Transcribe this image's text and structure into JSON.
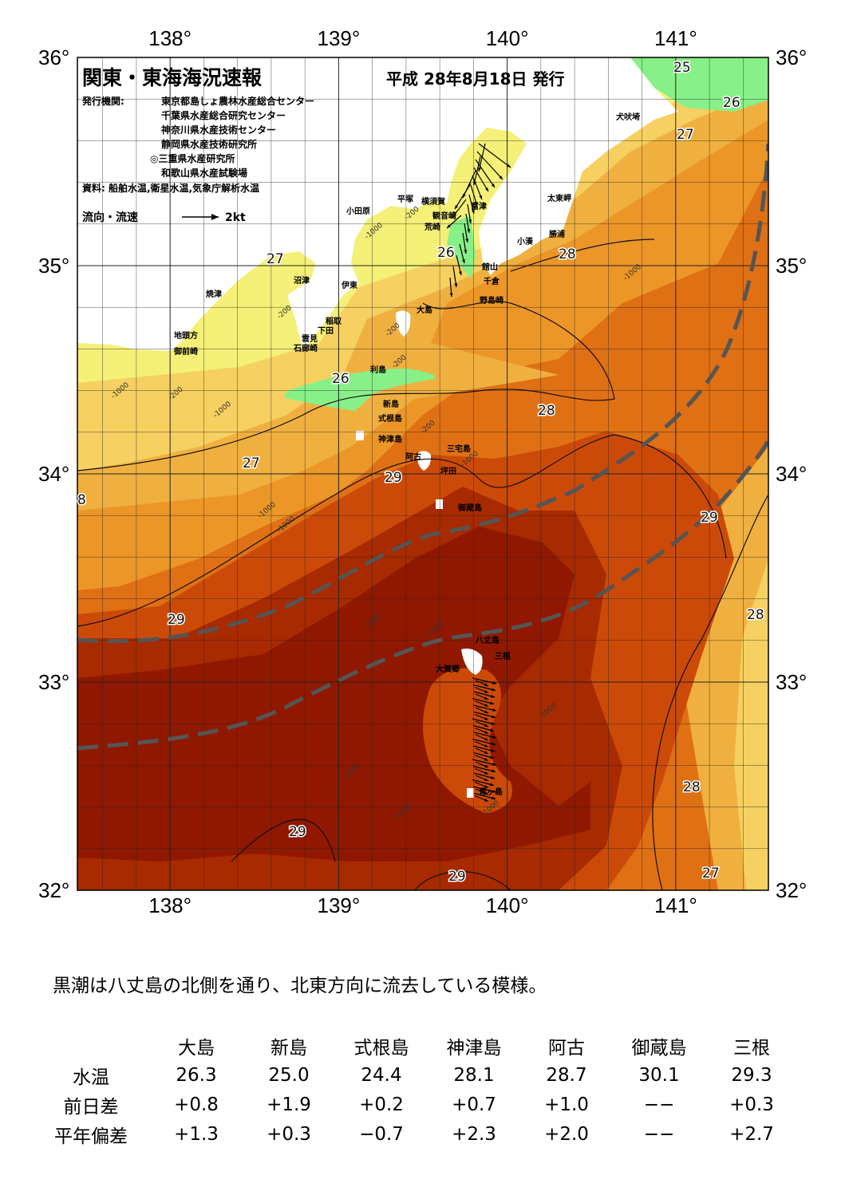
{
  "header": {
    "title": "関東・東海海況速報",
    "date": "平成 28年8月18日 発行",
    "publisher_label": "発行機関:",
    "publishers": [
      "東京都島しょ農林水産総合センター",
      "千葉県水産総合研究センター",
      "神奈川県水産技術センター",
      "静岡県水産技術研究所",
      "◎三重県水産研究所",
      "和歌山県水産試験場"
    ],
    "source": "資料: 船舶水温,衛星水温,気象庁解析水温",
    "flow_legend_label": "流向・流速",
    "flow_legend_value": "2kt"
  },
  "axes": {
    "lon_ticks": [
      "138°",
      "139°",
      "140°",
      "141°"
    ],
    "lat_ticks": [
      "36°",
      "35°",
      "34°",
      "33°",
      "32°"
    ],
    "lon_range": [
      137.45,
      141.55
    ],
    "lat_range": [
      32,
      36
    ]
  },
  "colors": {
    "land": "#ffffff",
    "t25": "#88f088",
    "t26": "#f4f078",
    "t27": "#f6d060",
    "t27b": "#f0b040",
    "t28": "#ec9628",
    "t28b": "#e07014",
    "t29": "#cc4a08",
    "t29b": "#a82a00",
    "t30": "#901800",
    "kuroshio": "#555555"
  },
  "place_names": [
    "犬吠埼",
    "太東岬",
    "勝浦",
    "小湊",
    "館山",
    "千倉",
    "野島崎",
    "富津",
    "観音崎",
    "荒崎",
    "横須賀",
    "平塚",
    "小田原",
    "沼津",
    "伊東",
    "焼津",
    "稲取",
    "下田",
    "雲見",
    "石廊崎",
    "地頭方",
    "御前崎",
    "大島",
    "利島",
    "新島",
    "式根島",
    "神津島",
    "阿古",
    "三宅島",
    "坪田",
    "御蔵島",
    "八丈島",
    "三根",
    "大賀郷",
    "青ヶ島"
  ],
  "isotherm_labels": [
    "25",
    "26",
    "26",
    "27",
    "28",
    "27",
    "26",
    "28",
    "27",
    "29",
    "8",
    "29",
    "29",
    "28",
    "28",
    "29",
    "29",
    "27"
  ],
  "depth_labels": [
    "-200",
    "-1000",
    "-200",
    "-200",
    "-200",
    "-1000",
    "-200",
    "-1000",
    "-1000",
    "-200",
    "-1000",
    "-1000",
    "-1000",
    "-1000",
    "-1000",
    "-1000",
    "-1000",
    "-1000",
    "-1000"
  ],
  "summary": "黒潮は八丈島の北側を通り、北東方向に流去している模様。",
  "table": {
    "stations": [
      "大島",
      "新島",
      "式根島",
      "神津島",
      "阿古",
      "御蔵島",
      "三根"
    ],
    "rows": [
      {
        "label": "水温",
        "values": [
          "26.3",
          "25.0",
          "24.4",
          "28.1",
          "28.7",
          "30.1",
          "29.3"
        ]
      },
      {
        "label": "前日差",
        "values": [
          "+0.8",
          "+1.9",
          "+0.2",
          "+0.7",
          "+1.0",
          "−−",
          "+0.3"
        ]
      },
      {
        "label": "平年偏差",
        "values": [
          "+1.3",
          "+0.3",
          "−0.7",
          "+2.3",
          "+2.0",
          "−−",
          "+2.7"
        ]
      }
    ]
  }
}
